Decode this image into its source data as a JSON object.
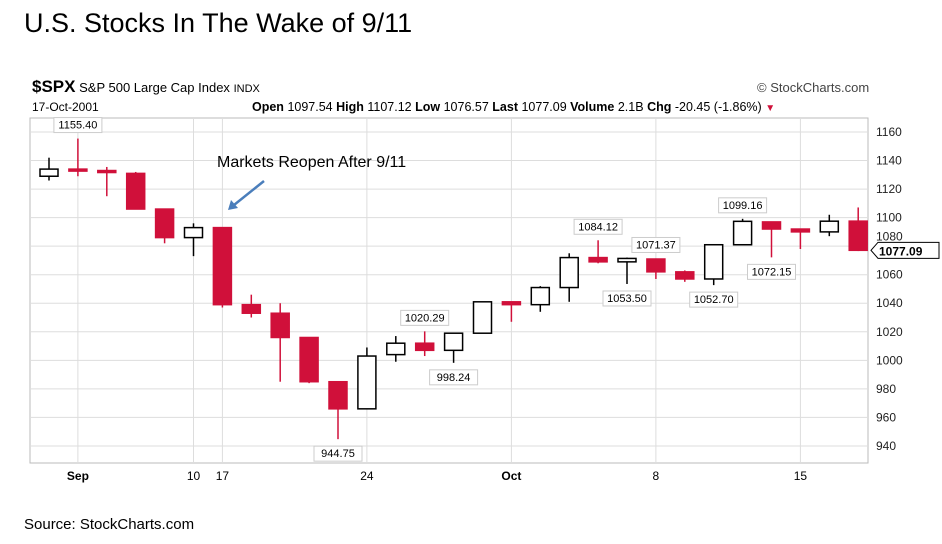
{
  "title": "U.S. Stocks In The Wake of 9/11",
  "source": "Source: StockCharts.com",
  "header": {
    "symbol": "$SPX",
    "name": "S&P 500 Large Cap Index",
    "exchange": "INDX",
    "date": "17-Oct-2001",
    "brand": "© StockCharts.com",
    "open_label": "Open",
    "open": "1097.54",
    "high_label": "High",
    "high": "1107.12",
    "low_label": "Low",
    "low": "1076.57",
    "last_label": "Last",
    "last": "1077.09",
    "volume_label": "Volume",
    "volume": "2.1B",
    "chg_label": "Chg",
    "chg": "-20.45 (-1.86%)",
    "chg_icon": "triangle-down-icon"
  },
  "annotation": "Markets Reopen After 9/11",
  "chart_data": {
    "type": "candlestick",
    "ylim": [
      930,
      1170
    ],
    "yticks": [
      940,
      960,
      980,
      1000,
      1020,
      1040,
      1060,
      1080,
      1100,
      1120,
      1140,
      1160
    ],
    "xticks": [
      {
        "i": 1,
        "label": "Sep"
      },
      {
        "i": 5,
        "label": "10"
      },
      {
        "i": 6,
        "label": "17"
      },
      {
        "i": 11,
        "label": "24"
      },
      {
        "i": 16,
        "label": "Oct"
      },
      {
        "i": 21,
        "label": "8"
      },
      {
        "i": 26,
        "label": "15"
      }
    ],
    "last_price": "1077.09",
    "candles": [
      [
        1129,
        1142,
        1126,
        1134
      ],
      [
        1134,
        1155.4,
        1129,
        1133
      ],
      [
        1133,
        1135.5,
        1115,
        1132
      ],
      [
        1131,
        1132,
        1106,
        1106
      ],
      [
        1106,
        1106,
        1082,
        1086
      ],
      [
        1086,
        1096,
        1073,
        1093
      ],
      [
        1093,
        1093,
        1037,
        1039
      ],
      [
        1039,
        1046,
        1030,
        1033
      ],
      [
        1033,
        1040,
        985,
        1016
      ],
      [
        1016,
        1016,
        984,
        985
      ],
      [
        985,
        985,
        944.75,
        966
      ],
      [
        966,
        1009,
        966,
        1003
      ],
      [
        1004,
        1017,
        999,
        1012
      ],
      [
        1012,
        1020.29,
        1003,
        1007
      ],
      [
        1007,
        1019,
        998.24,
        1019
      ],
      [
        1019,
        1040,
        1019,
        1041
      ],
      [
        1041,
        1041,
        1027,
        1039
      ],
      [
        1039,
        1052,
        1034,
        1051
      ],
      [
        1051,
        1075,
        1041,
        1072
      ],
      [
        1072,
        1084.12,
        1068,
        1069
      ],
      [
        1069,
        1072,
        1053.5,
        1071.4
      ],
      [
        1071,
        1071.37,
        1057,
        1062
      ],
      [
        1062,
        1063,
        1055,
        1057
      ],
      [
        1057,
        1081,
        1052.7,
        1081
      ],
      [
        1081,
        1099.16,
        1081,
        1097.4
      ],
      [
        1097,
        1097,
        1072.15,
        1092
      ],
      [
        1092,
        1092,
        1078,
        1090
      ],
      [
        1090,
        1102,
        1087,
        1097.5
      ],
      [
        1097.54,
        1107.12,
        1076.57,
        1077.09
      ]
    ],
    "labels": [
      {
        "i": 1,
        "text": "1155.40",
        "pos": "above"
      },
      {
        "i": 10,
        "text": "944.75",
        "pos": "below"
      },
      {
        "i": 13,
        "text": "1020.29",
        "pos": "above"
      },
      {
        "i": 14,
        "text": "998.24",
        "pos": "below"
      },
      {
        "i": 19,
        "text": "1084.12",
        "pos": "above"
      },
      {
        "i": 20,
        "text": "1053.50",
        "pos": "below"
      },
      {
        "i": 21,
        "text": "1071.37",
        "pos": "above"
      },
      {
        "i": 23,
        "text": "1052.70",
        "pos": "below"
      },
      {
        "i": 24,
        "text": "1099.16",
        "pos": "above"
      },
      {
        "i": 25,
        "text": "1072.15",
        "pos": "below"
      }
    ],
    "colors": {
      "down": "#d0103a",
      "up": "#000000",
      "grid": "#dddddd"
    }
  }
}
